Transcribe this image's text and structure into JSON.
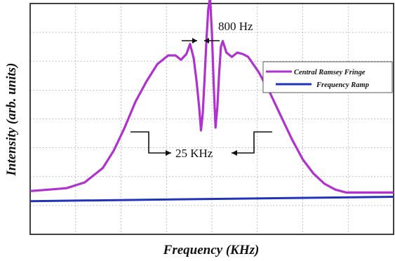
{
  "chart_data": {
    "type": "line",
    "title": "",
    "xlabel": "Frequency (KHz)",
    "ylabel": "Intensity (arb. units)",
    "grid": true,
    "grid_style": "dotted",
    "xlim": [
      0,
      10
    ],
    "ylim": [
      0,
      8
    ],
    "legend_position": "right",
    "series": [
      {
        "name": "Central Ramsey Fringe",
        "color": "#b030d0",
        "x": [
          0,
          0.5,
          1.0,
          1.5,
          2.0,
          2.3,
          2.6,
          2.9,
          3.2,
          3.5,
          3.8,
          4.0,
          4.15,
          4.3,
          4.4,
          4.5,
          4.58,
          4.65,
          4.7,
          4.75,
          4.8,
          4.85,
          4.9,
          4.95,
          5.0,
          5.05,
          5.1,
          5.15,
          5.2,
          5.25,
          5.3,
          5.4,
          5.55,
          5.7,
          5.85,
          6.0,
          6.3,
          6.6,
          6.9,
          7.2,
          7.5,
          7.8,
          8.1,
          8.4,
          8.7,
          9.0,
          9.5,
          10.0
        ],
        "y": [
          1.5,
          1.55,
          1.6,
          1.8,
          2.3,
          2.9,
          3.7,
          4.6,
          5.3,
          5.9,
          6.2,
          6.2,
          6.05,
          6.25,
          6.6,
          6.1,
          5.3,
          4.4,
          3.6,
          4.2,
          5.4,
          6.7,
          7.8,
          8.2,
          7.0,
          5.2,
          3.7,
          4.4,
          5.6,
          6.5,
          6.7,
          6.3,
          6.15,
          6.3,
          6.25,
          6.15,
          5.6,
          4.9,
          4.1,
          3.3,
          2.6,
          2.1,
          1.75,
          1.55,
          1.45,
          1.45,
          1.45,
          1.45
        ]
      },
      {
        "name": "Frequency Ramp",
        "color": "#2233bb",
        "x": [
          0,
          10
        ],
        "y": [
          1.15,
          1.3
        ]
      }
    ],
    "annotations": [
      {
        "text": "800 Hz",
        "x": 5.5,
        "y": 7.7
      },
      {
        "text": "25 KHz",
        "x": 4.0,
        "y": 3.05
      }
    ]
  }
}
